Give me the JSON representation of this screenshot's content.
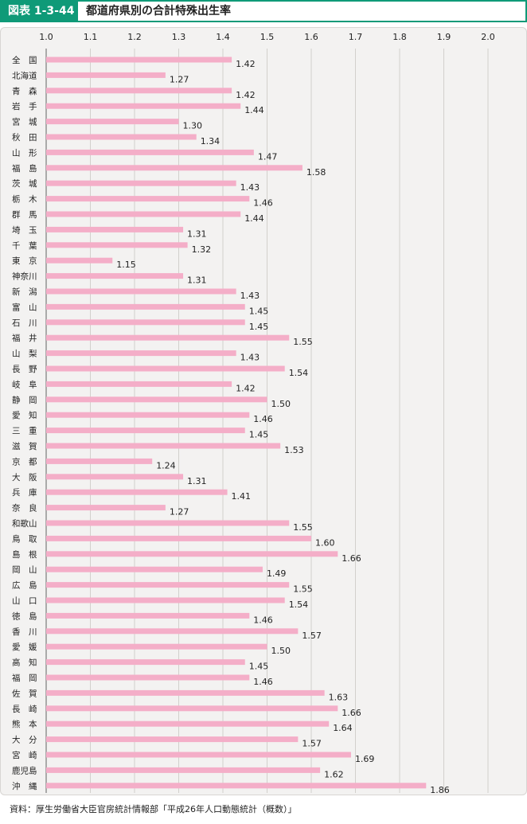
{
  "header": {
    "figure_label": "図表 1-3-44",
    "title": "都道府県別の合計特殊出生率"
  },
  "source": "資料：厚生労働省大臣官房統計情報部「平成26年人口動態統計（概数）」",
  "colors": {
    "accent": "#0f9a78",
    "bar": "#f4aec8",
    "panel_bg": "#f3f2f1"
  },
  "chart_data": {
    "type": "bar",
    "orientation": "horizontal",
    "title": "都道府県別の合計特殊出生率",
    "xlabel": "",
    "ylabel": "",
    "xlim": [
      1.0,
      2.0
    ],
    "x_ticks": [
      "1.0",
      "1.1",
      "1.2",
      "1.3",
      "1.4",
      "1.5",
      "1.6",
      "1.7",
      "1.8",
      "1.9",
      "2.0"
    ],
    "grid": true,
    "categories": [
      "全　国",
      "北海道",
      "青　森",
      "岩　手",
      "宮　城",
      "秋　田",
      "山　形",
      "福　島",
      "茨　城",
      "栃　木",
      "群　馬",
      "埼　玉",
      "千　葉",
      "東　京",
      "神奈川",
      "新　潟",
      "富　山",
      "石　川",
      "福　井",
      "山　梨",
      "長　野",
      "岐　阜",
      "静　岡",
      "愛　知",
      "三　重",
      "滋　賀",
      "京　都",
      "大　阪",
      "兵　庫",
      "奈　良",
      "和歌山",
      "鳥　取",
      "島　根",
      "岡　山",
      "広　島",
      "山　口",
      "徳　島",
      "香　川",
      "愛　媛",
      "高　知",
      "福　岡",
      "佐　賀",
      "長　崎",
      "熊　本",
      "大　分",
      "宮　崎",
      "鹿児島",
      "沖　縄"
    ],
    "value_labels": [
      "1.42",
      "1.27",
      "1.42",
      "1.44",
      "1.30",
      "1.34",
      "1.47",
      "1.58",
      "1.43",
      "1.46",
      "1.44",
      "1.31",
      "1.32",
      "1.15",
      "1.31",
      "1.43",
      "1.45",
      "1.45",
      "1.55",
      "1.43",
      "1.54",
      "1.42",
      "1.50",
      "1.46",
      "1.45",
      "1.53",
      "1.24",
      "1.31",
      "1.41",
      "1.27",
      "1.55",
      "1.60",
      "1.66",
      "1.49",
      "1.55",
      "1.54",
      "1.46",
      "1.57",
      "1.50",
      "1.45",
      "1.46",
      "1.63",
      "1.66",
      "1.64",
      "1.57",
      "1.69",
      "1.62",
      "1.86"
    ],
    "values": [
      1.42,
      1.27,
      1.42,
      1.44,
      1.3,
      1.34,
      1.47,
      1.58,
      1.43,
      1.46,
      1.44,
      1.31,
      1.32,
      1.15,
      1.31,
      1.43,
      1.45,
      1.45,
      1.55,
      1.43,
      1.54,
      1.42,
      1.5,
      1.46,
      1.45,
      1.53,
      1.24,
      1.31,
      1.41,
      1.27,
      1.55,
      1.6,
      1.66,
      1.49,
      1.55,
      1.54,
      1.46,
      1.57,
      1.5,
      1.45,
      1.46,
      1.63,
      1.66,
      1.64,
      1.57,
      1.69,
      1.62,
      1.86
    ]
  }
}
